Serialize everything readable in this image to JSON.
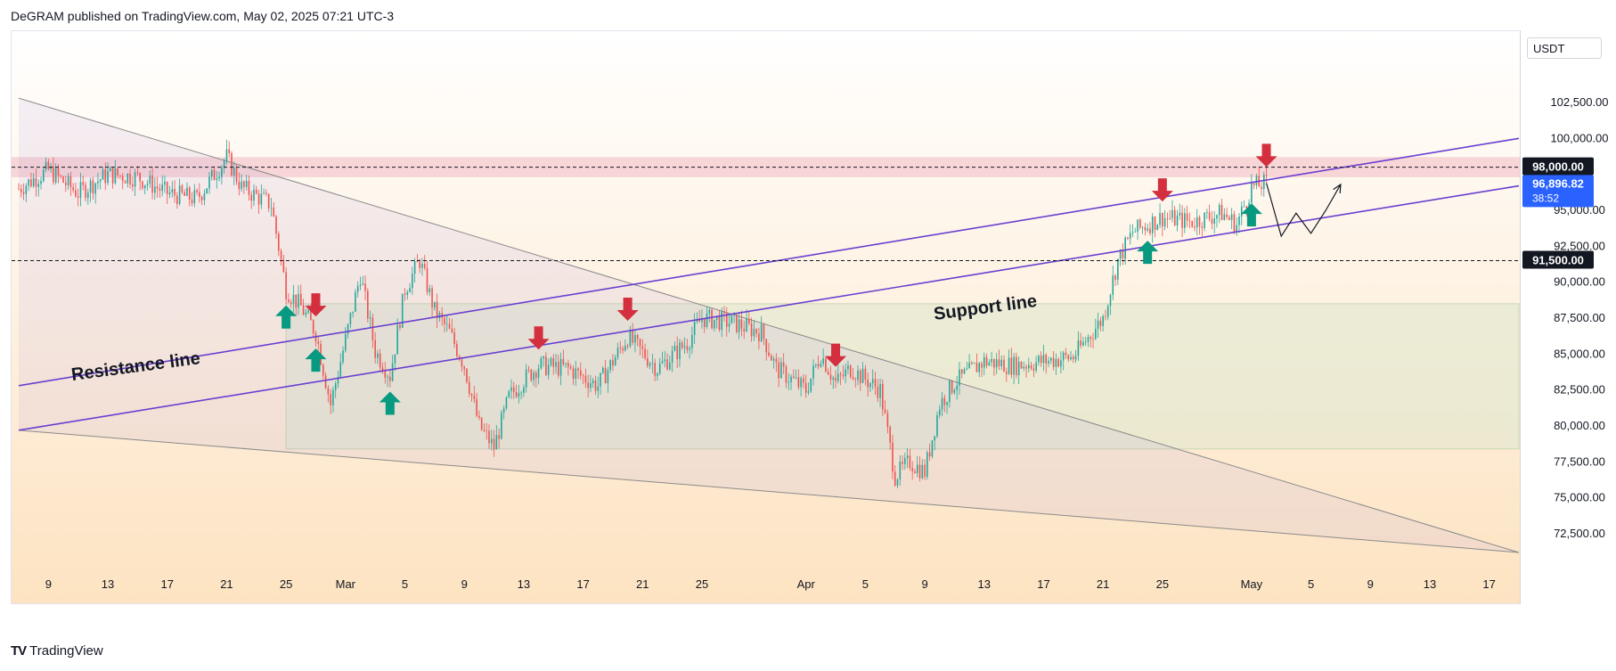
{
  "header": {
    "text": "DeGRAM published on TradingView.com, May 02, 2025 07:21 UTC-3"
  },
  "footer": {
    "brand": "TradingView",
    "logo": "TV"
  },
  "price_axis": {
    "currency": "USDT",
    "ticks": [
      "102,500.00",
      "100,000.00",
      "95,000.00",
      "92,500.00",
      "90,000.00",
      "87,500.00",
      "85,000.00",
      "82,500.00",
      "80,000.00",
      "77,500.00",
      "75,000.00",
      "72,500.00"
    ],
    "level_labels": [
      "98,000.00",
      "91,500.00"
    ],
    "current_price": "96,896.82",
    "countdown": "38:52"
  },
  "time_axis": {
    "ticks": [
      "9",
      "13",
      "17",
      "21",
      "25",
      "Mar",
      "5",
      "9",
      "13",
      "17",
      "21",
      "25",
      "Apr",
      "5",
      "9",
      "13",
      "17",
      "21",
      "25",
      "May",
      "5",
      "9",
      "13",
      "17"
    ]
  },
  "annotations": {
    "resistance_label": "Resistance line",
    "support_label": "Support line"
  },
  "colors": {
    "up_arrow": "#089981",
    "down_arrow": "#d32f3f",
    "channel_line": "#6a3fd0",
    "resistance_zone": "#f5c6cc",
    "range_box": "#dfe7cf",
    "candle_up": "#26a69a",
    "candle_down": "#ef5350",
    "current_price_bg": "#2962ff"
  },
  "chart_data": {
    "type": "candlestick",
    "symbol_currency": "USDT",
    "x_range": [
      "2025-02-07",
      "2025-05-19"
    ],
    "ylim": [
      70000,
      105000
    ],
    "horizontal_levels": [
      98000,
      91500
    ],
    "current_price": 96896.82,
    "price_path": [
      [
        "2025-02-07",
        96500
      ],
      [
        "2025-02-09",
        97800
      ],
      [
        "2025-02-11",
        96200
      ],
      [
        "2025-02-13",
        97500
      ],
      [
        "2025-02-15",
        97300
      ],
      [
        "2025-02-17",
        96200
      ],
      [
        "2025-02-19",
        95800
      ],
      [
        "2025-02-21",
        98700
      ],
      [
        "2025-02-22",
        96600
      ],
      [
        "2025-02-24",
        95400
      ],
      [
        "2025-02-25",
        89500
      ],
      [
        "2025-02-26",
        88300
      ],
      [
        "2025-02-27",
        86500
      ],
      [
        "2025-02-28",
        81500
      ],
      [
        "2025-03-01",
        86000
      ],
      [
        "2025-03-02",
        90500
      ],
      [
        "2025-03-03",
        85200
      ],
      [
        "2025-03-04",
        83500
      ],
      [
        "2025-03-05",
        89500
      ],
      [
        "2025-03-06",
        91500
      ],
      [
        "2025-03-07",
        88000
      ],
      [
        "2025-03-08",
        86500
      ],
      [
        "2025-03-09",
        84200
      ],
      [
        "2025-03-10",
        80000
      ],
      [
        "2025-03-11",
        78500
      ],
      [
        "2025-03-12",
        82000
      ],
      [
        "2025-03-13",
        83200
      ],
      [
        "2025-03-14",
        84200
      ],
      [
        "2025-03-16",
        84000
      ],
      [
        "2025-03-18",
        82800
      ],
      [
        "2025-03-20",
        86200
      ],
      [
        "2025-03-22",
        84000
      ],
      [
        "2025-03-24",
        85800
      ],
      [
        "2025-03-25",
        87500
      ],
      [
        "2025-03-27",
        87200
      ],
      [
        "2025-03-29",
        86500
      ],
      [
        "2025-03-30",
        84000
      ],
      [
        "2025-04-01",
        82500
      ],
      [
        "2025-04-02",
        85000
      ],
      [
        "2025-04-03",
        83000
      ],
      [
        "2025-04-04",
        84000
      ],
      [
        "2025-04-06",
        82500
      ],
      [
        "2025-04-07",
        76500
      ],
      [
        "2025-04-08",
        77500
      ],
      [
        "2025-04-09",
        76800
      ],
      [
        "2025-04-10",
        81500
      ],
      [
        "2025-04-11",
        83000
      ],
      [
        "2025-04-13",
        84500
      ],
      [
        "2025-04-15",
        84200
      ],
      [
        "2025-04-17",
        84500
      ],
      [
        "2025-04-19",
        84800
      ],
      [
        "2025-04-21",
        87500
      ],
      [
        "2025-04-22",
        91500
      ],
      [
        "2025-04-23",
        93500
      ],
      [
        "2025-04-25",
        94500
      ],
      [
        "2025-04-27",
        94200
      ],
      [
        "2025-04-29",
        94800
      ],
      [
        "2025-04-30",
        94000
      ],
      [
        "2025-05-01",
        96600
      ],
      [
        "2025-05-02",
        96897
      ]
    ],
    "projection": [
      [
        "2025-05-02",
        96897
      ],
      [
        "2025-05-03",
        93200
      ],
      [
        "2025-05-04",
        94800
      ],
      [
        "2025-05-05",
        93400
      ],
      [
        "2025-05-06",
        95000
      ],
      [
        "2025-05-07",
        96800
      ]
    ],
    "trend_lines": {
      "resistance_line": [
        [
          "2025-02-07",
          82800
        ],
        [
          "2025-05-19",
          100000
        ]
      ],
      "support_line": [
        [
          "2025-02-07",
          79700
        ],
        [
          "2025-05-19",
          96700
        ]
      ],
      "wedge_upper": [
        [
          "2025-02-07",
          102800
        ],
        [
          "2025-05-19",
          71200
        ]
      ],
      "wedge_lower": [
        [
          "2025-02-07",
          79700
        ],
        [
          "2025-05-19",
          71200
        ]
      ]
    },
    "zones": {
      "resistance_zone": [
        97300,
        98700
      ],
      "range_box": {
        "from": "2025-02-25",
        "to": "2025-05-19",
        "low": 78400,
        "high": 88500
      }
    },
    "signals": {
      "up_arrows": [
        "2025-02-25",
        "2025-02-27",
        "2025-03-04",
        "2025-04-24",
        "2025-05-01"
      ],
      "down_arrows": [
        "2025-02-27",
        "2025-03-14",
        "2025-03-20",
        "2025-04-03",
        "2025-04-25",
        "2025-05-02"
      ]
    }
  }
}
